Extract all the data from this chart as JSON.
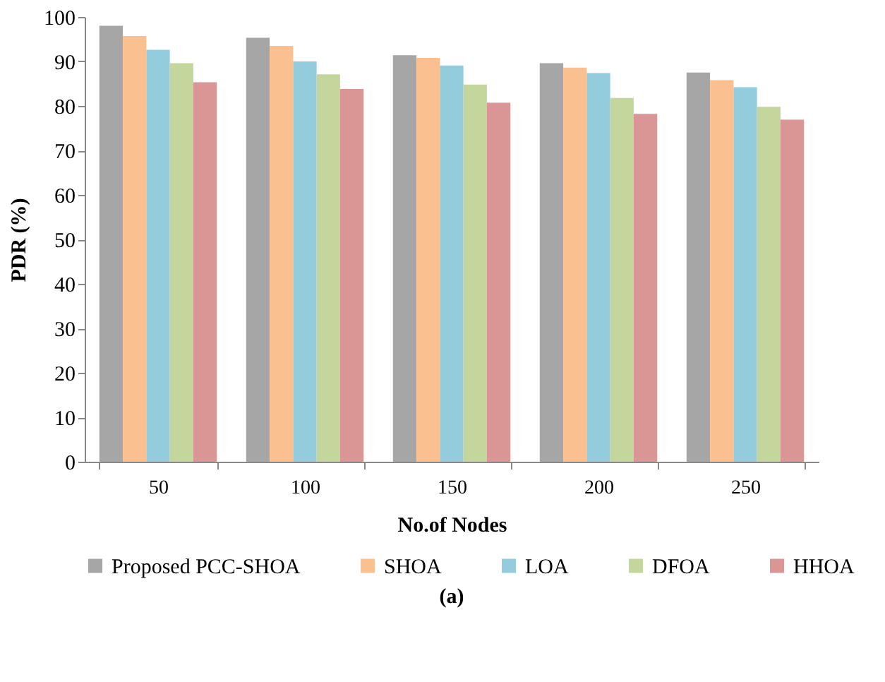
{
  "chart_data": {
    "type": "bar",
    "xlabel": "No.of Nodes",
    "ylabel": "PDR (%)",
    "categories": [
      "50",
      "100",
      "150",
      "200",
      "250"
    ],
    "series": [
      {
        "name": "Proposed PCC-SHOA",
        "color": "#a6a6a6",
        "values": [
          98.0,
          95.3,
          91.4,
          89.6,
          87.5
        ]
      },
      {
        "name": "SHOA",
        "color": "#fac090",
        "values": [
          95.7,
          93.5,
          90.8,
          88.6,
          85.8
        ]
      },
      {
        "name": "LOA",
        "color": "#93cddd",
        "values": [
          92.6,
          90.0,
          89.1,
          87.4,
          84.2
        ]
      },
      {
        "name": "DFOA",
        "color": "#c3d69b",
        "values": [
          89.6,
          87.1,
          84.8,
          81.8,
          79.8
        ]
      },
      {
        "name": "HHOA",
        "color": "#d99694",
        "values": [
          85.3,
          83.8,
          80.7,
          78.2,
          76.9
        ]
      }
    ],
    "ylim": [
      0,
      100
    ],
    "yticks": [
      0,
      10,
      20,
      30,
      40,
      50,
      60,
      70,
      80,
      90,
      100
    ],
    "grid": false,
    "legend": "bottom",
    "annotations": [
      "(a)"
    ]
  }
}
